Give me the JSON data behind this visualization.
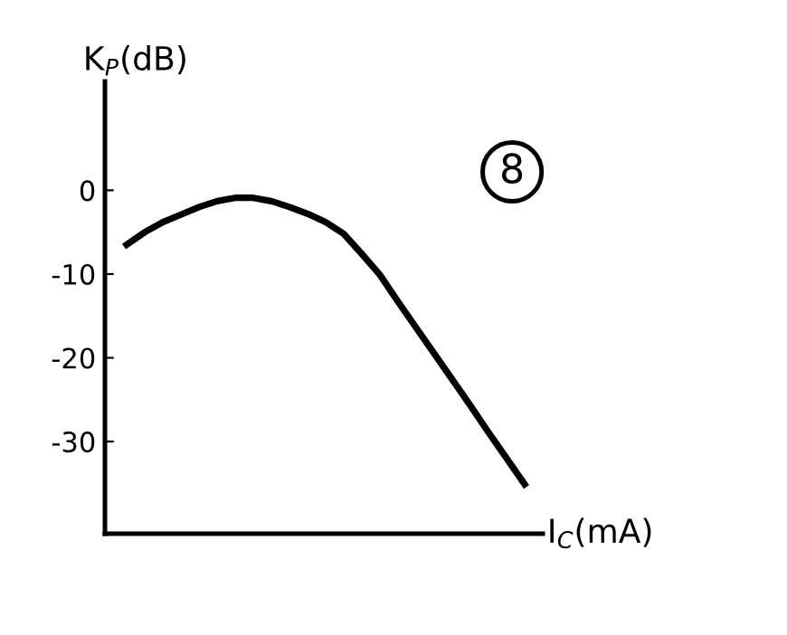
{
  "chart_data": {
    "type": "line",
    "ylabel": "K$_{P}$(dB)",
    "xlabel": "I$_{C}$(mA)",
    "categories": [
      null,
      null,
      null,
      null,
      null,
      null,
      null,
      null,
      null,
      null,
      null,
      null,
      null,
      null,
      null,
      null,
      null,
      null,
      null,
      null,
      null,
      null,
      null
    ],
    "series": [
      {
        "color": "#000000",
        "values": [
          -6.5,
          -5.0,
          -3.8,
          -2.9,
          -2.0,
          -1.3,
          -0.9,
          -0.9,
          -1.3,
          -2.0,
          -2.8,
          -3.8,
          -5.2,
          -7.6,
          -10.1,
          -13.3,
          -16.4,
          -19.5,
          -22.6,
          -25.7,
          -28.9,
          -32.0,
          -35.1
        ]
      }
    ],
    "ylim": [
      -41,
      13
    ],
    "yticks": [
      0,
      -10,
      -20,
      -30
    ],
    "tick_labels": "y",
    "grid": false,
    "legend": false,
    "marker": "none",
    "line_style": "solid",
    "annotations": [
      "8"
    ]
  }
}
